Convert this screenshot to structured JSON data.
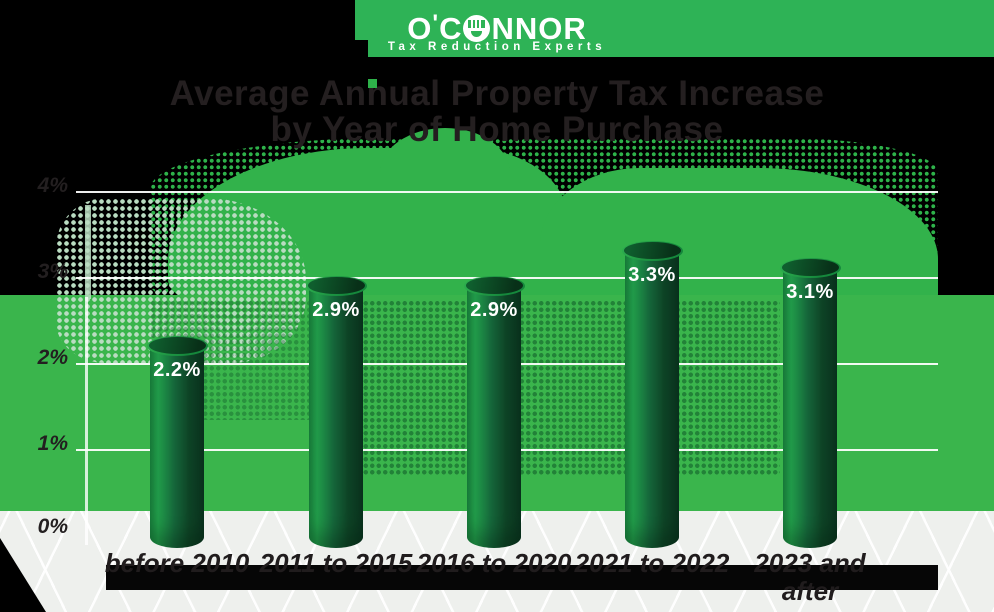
{
  "brand": {
    "name_left": "O",
    "apostrophe": "'",
    "name_mid": "C",
    "name_right": "NNOR",
    "tagline": "Tax Reduction Experts"
  },
  "title": {
    "line1": "Average Annual Property Tax Increase",
    "line2": "by Year of Home Purchase"
  },
  "y_axis": {
    "labels": [
      "4%",
      "3%",
      "2%",
      "1%",
      "0%"
    ]
  },
  "chart_data": {
    "type": "bar",
    "subtype": "3d-cylinder",
    "title": "Average Annual Property Tax Increase by Year of Home Purchase",
    "categories": [
      "before 2010",
      "2011 to 2015",
      "2016 to 2020",
      "2021 to 2022",
      "2023 and after"
    ],
    "values": [
      2.2,
      2.9,
      2.9,
      3.3,
      3.1
    ],
    "value_labels": [
      "2.2%",
      "2.9%",
      "2.9%",
      "3.3%",
      "3.1%"
    ],
    "xlabel": "",
    "ylabel": "",
    "ylim": [
      0,
      4
    ],
    "yticks": [
      "0%",
      "1%",
      "2%",
      "3%",
      "4%"
    ],
    "grid": true,
    "legend": false
  },
  "colors": {
    "header_green": "#2eb356",
    "plot_green": "#3ab54c",
    "map_dot_green": "#2eb24a",
    "map_light_green": "#b9dcc1",
    "bar_highlight": "#22a04c",
    "bar_shadow": "#0a3520",
    "gridline": "#ffffff",
    "dark_text": "#231f20",
    "bar_label_text": "#ffffff"
  }
}
